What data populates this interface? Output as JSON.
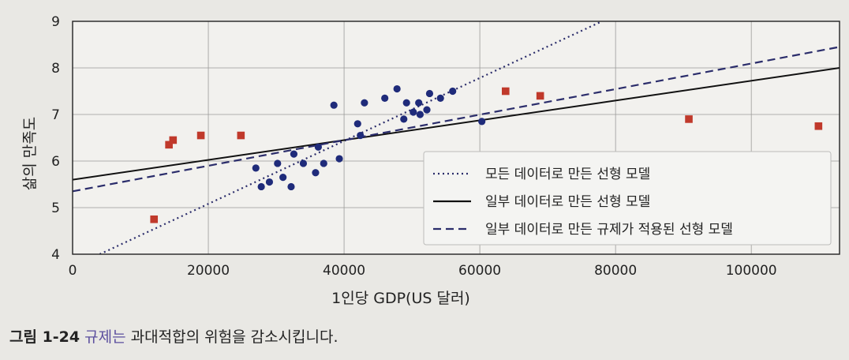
{
  "chart_data": {
    "type": "scatter",
    "xlabel": "1인당 GDP(US 달러)",
    "ylabel": "삶의 만족도",
    "xlim": [
      0,
      113000
    ],
    "ylim": [
      4,
      9
    ],
    "xticks": [
      0,
      20000,
      40000,
      60000,
      80000,
      100000
    ],
    "xtick_labels": [
      "0",
      "20000",
      "40000",
      "60000",
      "80000",
      "100000"
    ],
    "yticks": [
      4,
      5,
      6,
      7,
      8,
      9
    ],
    "ytick_labels": [
      "4",
      "5",
      "6",
      "7",
      "8",
      "9"
    ],
    "grid": true,
    "legend_position": "lower-right",
    "scatter_series": [
      {
        "marker": "circle",
        "color": "#1f2b7a",
        "points": [
          [
            27000,
            5.85
          ],
          [
            27800,
            5.45
          ],
          [
            29000,
            5.55
          ],
          [
            30200,
            5.95
          ],
          [
            31000,
            5.65
          ],
          [
            32200,
            5.45
          ],
          [
            32600,
            6.15
          ],
          [
            34000,
            5.95
          ],
          [
            35800,
            5.75
          ],
          [
            36200,
            6.3
          ],
          [
            37000,
            5.95
          ],
          [
            38500,
            7.2
          ],
          [
            39300,
            6.05
          ],
          [
            42000,
            6.8
          ],
          [
            42400,
            6.55
          ],
          [
            43000,
            7.25
          ],
          [
            46000,
            7.35
          ],
          [
            47800,
            7.55
          ],
          [
            48800,
            6.9
          ],
          [
            49200,
            7.25
          ],
          [
            50200,
            7.05
          ],
          [
            51000,
            7.25
          ],
          [
            51200,
            7.0
          ],
          [
            52200,
            7.1
          ],
          [
            52600,
            7.45
          ],
          [
            54200,
            7.35
          ],
          [
            56000,
            7.5
          ],
          [
            60300,
            6.85
          ]
        ]
      },
      {
        "marker": "square",
        "color": "#c0392b",
        "points": [
          [
            12000,
            4.75
          ],
          [
            14200,
            6.35
          ],
          [
            14800,
            6.45
          ],
          [
            18900,
            6.55
          ],
          [
            24800,
            6.55
          ],
          [
            63800,
            7.5
          ],
          [
            68900,
            7.4
          ],
          [
            90800,
            6.9
          ],
          [
            109900,
            6.75
          ]
        ]
      }
    ],
    "line_series": [
      {
        "name": "모든 데이터로 만든 선형 모델",
        "style": "dotted",
        "color": "#2b2d6b",
        "x": [
          4000,
          78000
        ],
        "y": [
          4.0,
          9.0
        ]
      },
      {
        "name": "일부 데이터로 만든 선형 모델",
        "style": "solid",
        "color": "#111111",
        "x": [
          0,
          113000
        ],
        "y": [
          5.6,
          8.0
        ]
      },
      {
        "name": "일부 데이터로 만든 규제가 적용된 선형 모델",
        "style": "dashed",
        "color": "#2b2d6b",
        "x": [
          0,
          113000
        ],
        "y": [
          5.35,
          8.45
        ]
      }
    ]
  },
  "caption": {
    "number": "그림 1-24",
    "title": "규제는",
    "rest": " 과대적합의 위험을 감소시킵니다."
  }
}
